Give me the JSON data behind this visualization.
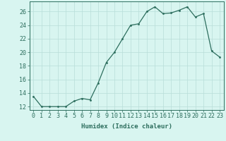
{
  "x": [
    0,
    1,
    2,
    3,
    4,
    5,
    6,
    7,
    8,
    9,
    10,
    11,
    12,
    13,
    14,
    15,
    16,
    17,
    18,
    19,
    20,
    21,
    22,
    23
  ],
  "y": [
    13.5,
    12.0,
    12.0,
    12.0,
    12.0,
    12.8,
    13.2,
    13.0,
    15.5,
    18.5,
    20.0,
    22.0,
    24.0,
    24.2,
    26.0,
    26.7,
    25.7,
    25.8,
    26.2,
    26.7,
    25.2,
    25.7,
    20.2,
    19.3
  ],
  "line_color": "#2d6e5e",
  "marker_color": "#2d6e5e",
  "bg_color": "#d8f5f0",
  "grid_color": "#b8ddd8",
  "xlabel": "Humidex (Indice chaleur)",
  "xlim": [
    -0.5,
    23.5
  ],
  "ylim": [
    11.5,
    27.5
  ],
  "yticks": [
    12,
    14,
    16,
    18,
    20,
    22,
    24,
    26
  ],
  "xticks": [
    0,
    1,
    2,
    3,
    4,
    5,
    6,
    7,
    8,
    9,
    10,
    11,
    12,
    13,
    14,
    15,
    16,
    17,
    18,
    19,
    20,
    21,
    22,
    23
  ],
  "tick_color": "#2d6e5e",
  "label_fontsize": 6.5,
  "tick_fontsize": 6.0
}
